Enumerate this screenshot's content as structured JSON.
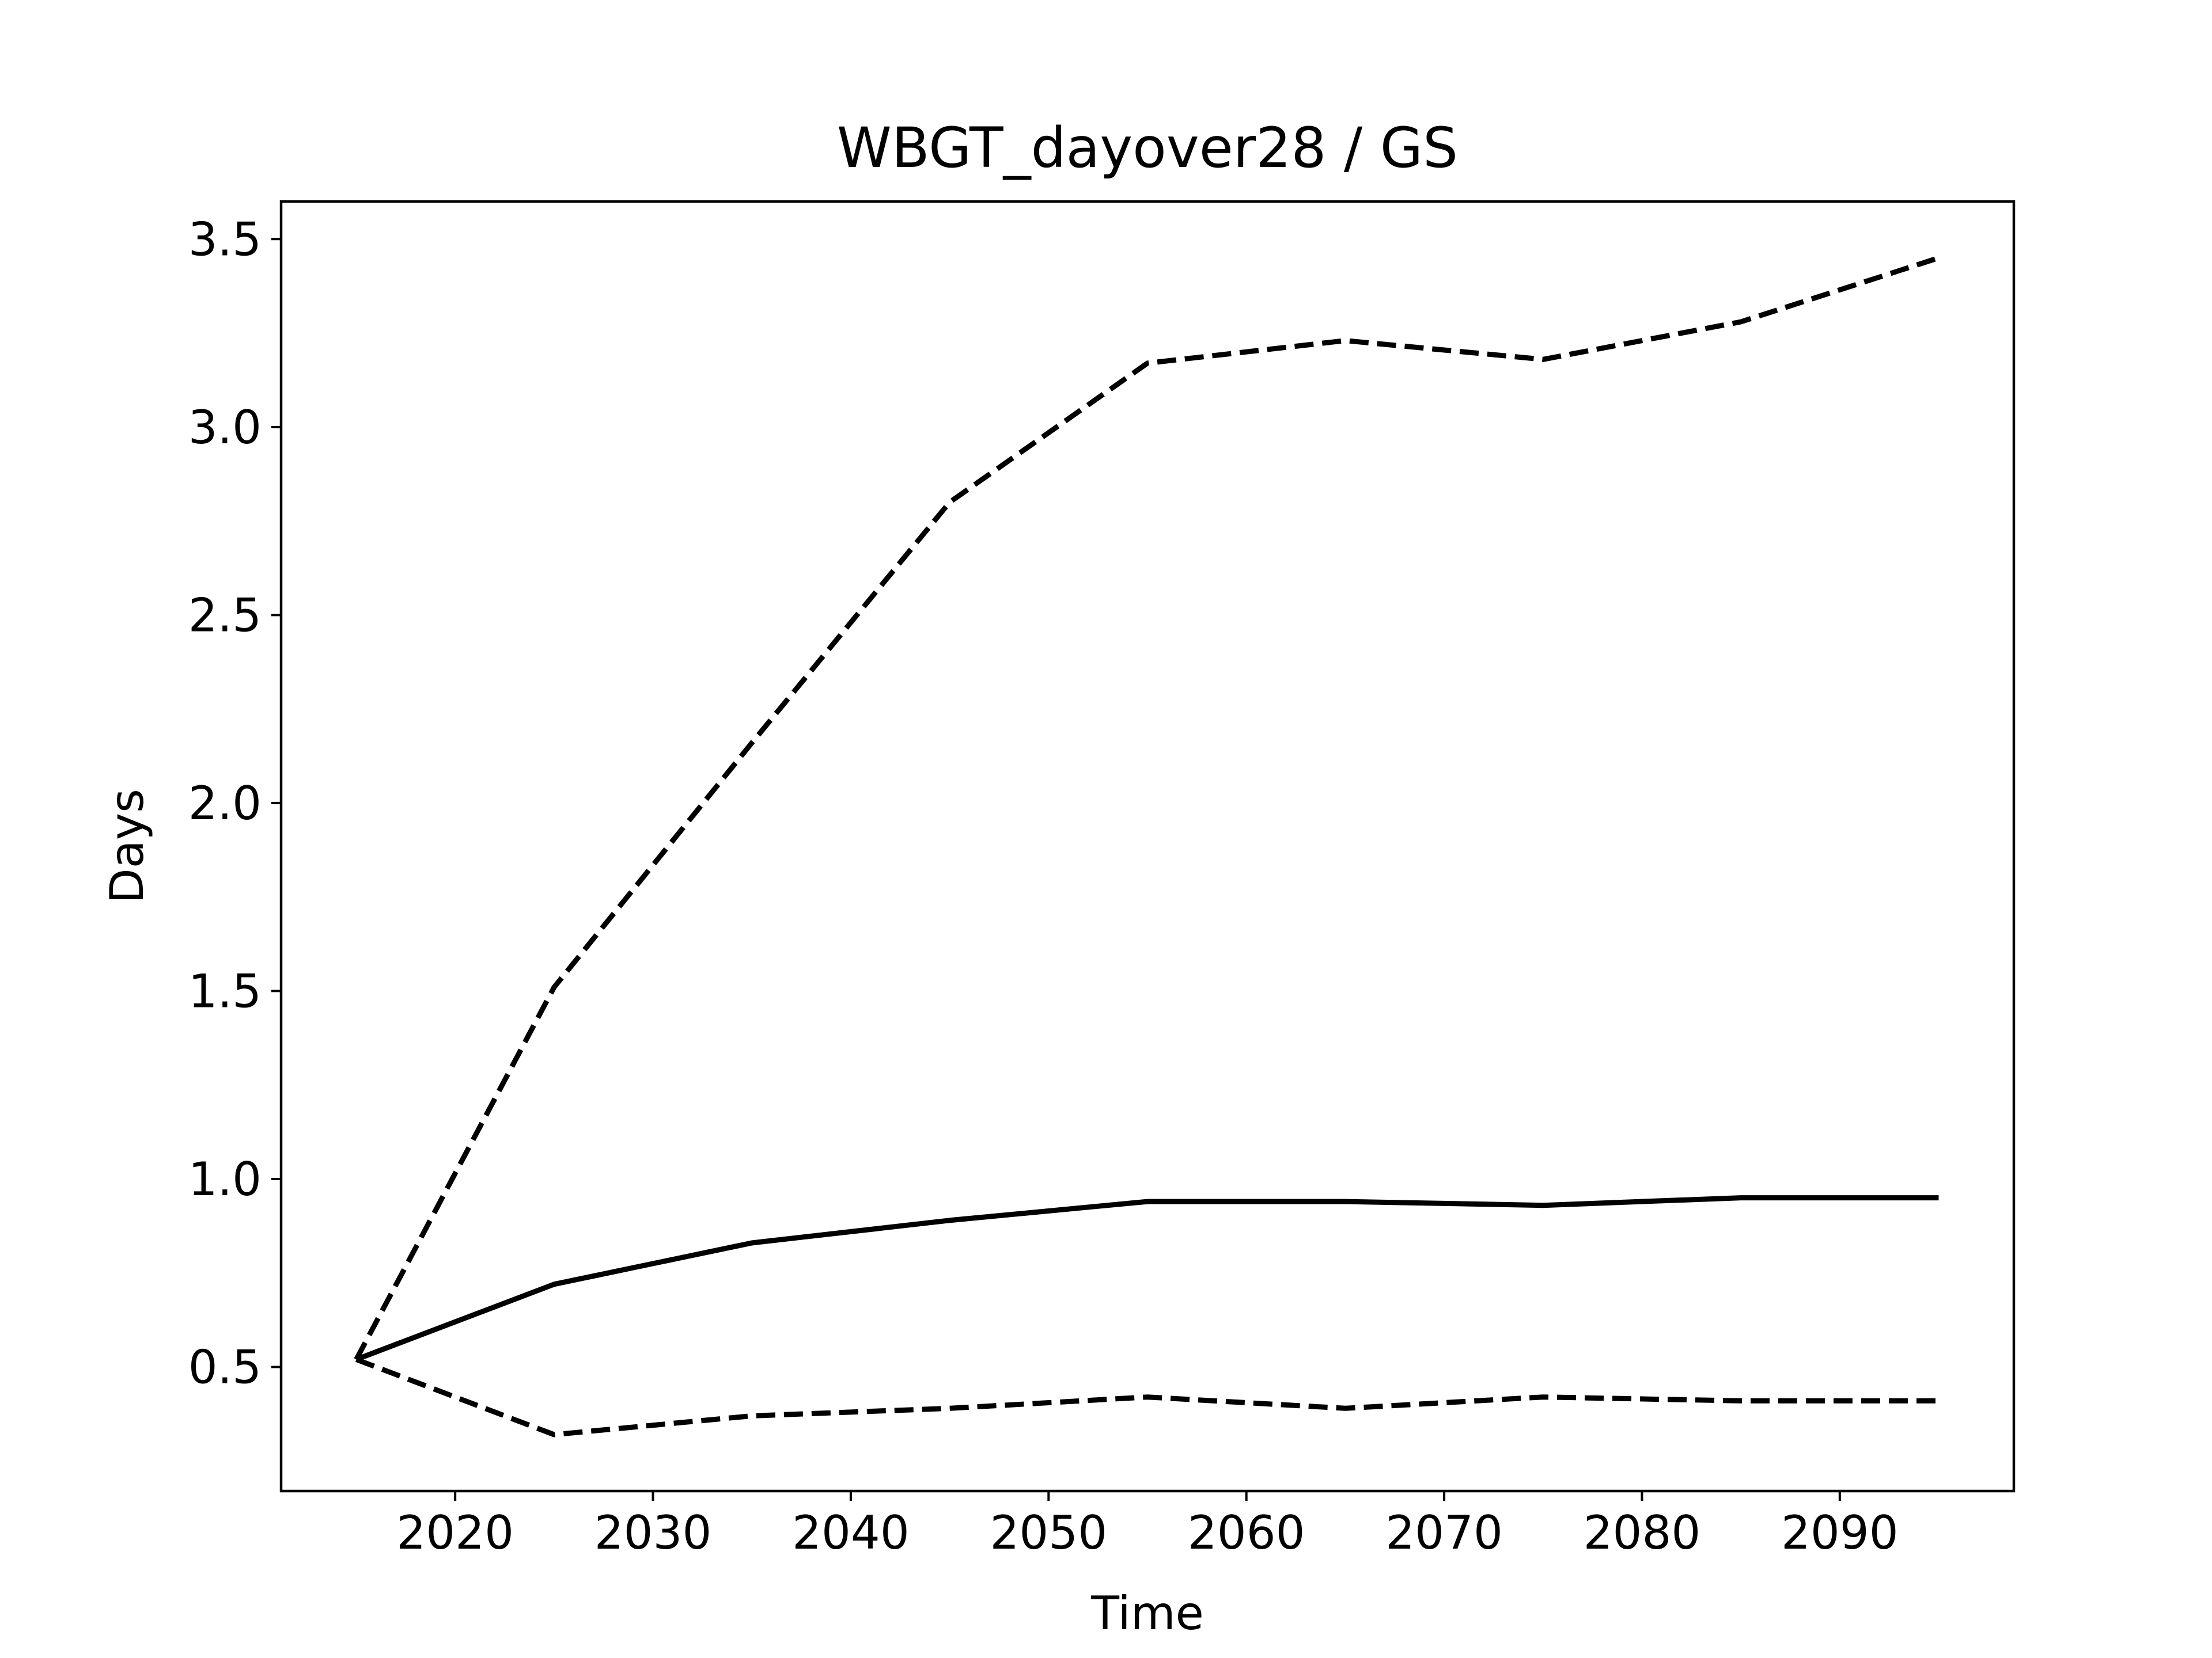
{
  "chart_data": {
    "type": "line",
    "title": "WBGT_dayover28 / GS",
    "xlabel": "Time",
    "ylabel": "Days",
    "xlim": [
      2011.2,
      2098.8
    ],
    "ylim": [
      0.17,
      3.6
    ],
    "x_ticks": [
      2020,
      2030,
      2040,
      2050,
      2060,
      2070,
      2080,
      2090
    ],
    "y_ticks": [
      0.5,
      1.0,
      1.5,
      2.0,
      2.5,
      3.0,
      3.5
    ],
    "x_tick_labels": [
      "2020",
      "2030",
      "2040",
      "2050",
      "2060",
      "2070",
      "2080",
      "2090"
    ],
    "y_tick_labels": [
      "0.5",
      "1.0",
      "1.5",
      "2.0",
      "2.5",
      "3.0",
      "3.5"
    ],
    "grid": false,
    "x": [
      2015,
      2025,
      2035,
      2045,
      2055,
      2065,
      2075,
      2085,
      2095
    ],
    "series": [
      {
        "style": "solid",
        "color": "#000000",
        "values": [
          0.52,
          0.72,
          0.83,
          0.89,
          0.94,
          0.94,
          0.93,
          0.95,
          0.95
        ]
      },
      {
        "style": "dashed",
        "color": "#000000",
        "values": [
          0.52,
          1.51,
          2.16,
          2.8,
          3.17,
          3.23,
          3.18,
          3.28,
          3.45
        ]
      },
      {
        "style": "dashed",
        "color": "#000000",
        "values": [
          0.52,
          0.32,
          0.37,
          0.39,
          0.42,
          0.39,
          0.42,
          0.41,
          0.41
        ]
      }
    ]
  }
}
